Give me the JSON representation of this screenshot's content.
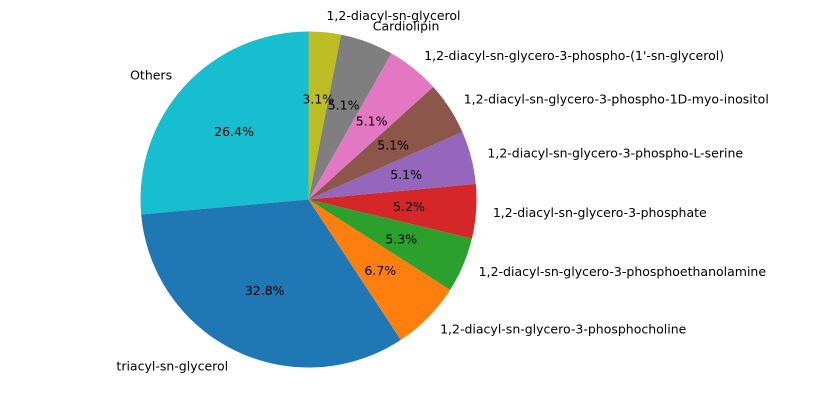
{
  "chart_data": {
    "type": "pie",
    "title": "",
    "start_angle_deg": 90,
    "direction": "counterclockwise",
    "slices": [
      {
        "label": "Others",
        "value": 26.4,
        "pct_label": "26.4%",
        "color": "#17becf"
      },
      {
        "label": "triacyl-sn-glycerol",
        "value": 32.8,
        "pct_label": "32.8%",
        "color": "#1f77b4"
      },
      {
        "label": "1,2-diacyl-sn-glycero-3-phosphocholine",
        "value": 6.7,
        "pct_label": "6.7%",
        "color": "#ff7f0e"
      },
      {
        "label": "1,2-diacyl-sn-glycero-3-phosphoethanolamine",
        "value": 5.3,
        "pct_label": "5.3%",
        "color": "#2ca02c"
      },
      {
        "label": "1,2-diacyl-sn-glycero-3-phosphate",
        "value": 5.2,
        "pct_label": "5.2%",
        "color": "#d62728"
      },
      {
        "label": "1,2-diacyl-sn-glycero-3-phospho-L-serine",
        "value": 5.1,
        "pct_label": "5.1%",
        "color": "#9467bd"
      },
      {
        "label": "1,2-diacyl-sn-glycero-3-phospho-1D-myo-inositol",
        "value": 5.1,
        "pct_label": "5.1%",
        "color": "#8c564b"
      },
      {
        "label": "1,2-diacyl-sn-glycero-3-phospho-(1'-sn-glycerol)",
        "value": 5.1,
        "pct_label": "5.1%",
        "color": "#e377c2"
      },
      {
        "label": "Cardiolipin",
        "value": 5.1,
        "pct_label": "5.1%",
        "color": "#7f7f7f"
      },
      {
        "label": "1,2-diacyl-sn-glycerol",
        "value": 3.1,
        "pct_label": "3.1%",
        "color": "#bcbd22"
      }
    ]
  }
}
